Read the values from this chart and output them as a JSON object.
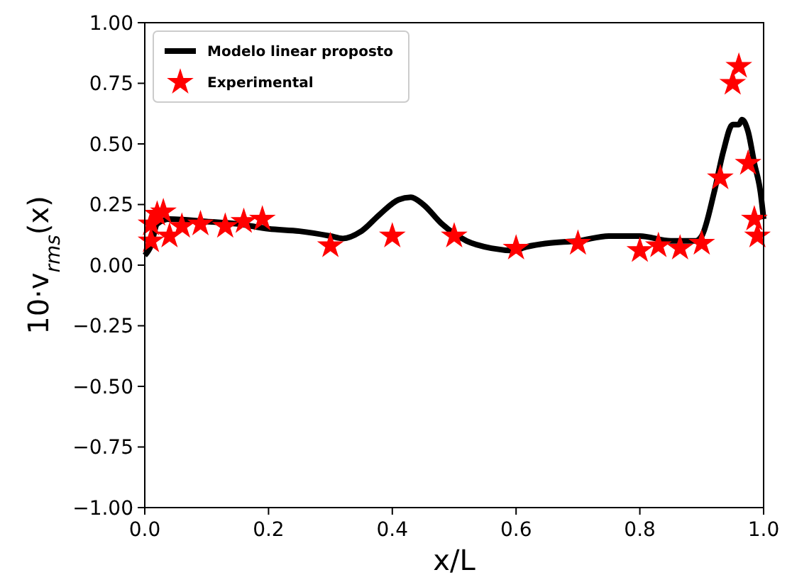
{
  "chart_data": {
    "type": "line",
    "xlabel": "x/L",
    "ylabel": "10·v$_{rms}$(x)",
    "xlim": [
      0,
      1
    ],
    "ylim": [
      -1,
      1
    ],
    "xticks": [
      {
        "value": 0,
        "label": "0.0"
      },
      {
        "value": 0.2,
        "label": "0.2"
      },
      {
        "value": 0.4,
        "label": "0.4"
      },
      {
        "value": 0.6,
        "label": "0.6"
      },
      {
        "value": 0.8,
        "label": "0.8"
      },
      {
        "value": 1,
        "label": "1.0"
      }
    ],
    "yticks": [
      {
        "value": -1,
        "label": "−1.00"
      },
      {
        "value": -0.75,
        "label": "−0.75"
      },
      {
        "value": -0.5,
        "label": "−0.50"
      },
      {
        "value": -0.25,
        "label": "−0.25"
      },
      {
        "value": 0,
        "label": "0.00"
      },
      {
        "value": 0.25,
        "label": "0.25"
      },
      {
        "value": 0.5,
        "label": "0.50"
      },
      {
        "value": 0.75,
        "label": "0.75"
      },
      {
        "value": 1,
        "label": "1.00"
      }
    ],
    "legend": "top left",
    "grid": false,
    "series": [
      {
        "name": "Modelo linear proposto",
        "color": "#000000",
        "marker": "none",
        "line_style": "solid",
        "x": [
          0,
          0.01,
          0.02,
          0.04,
          0.1,
          0.15,
          0.2,
          0.25,
          0.3,
          0.32,
          0.35,
          0.38,
          0.41,
          0.43,
          0.45,
          0.48,
          0.52,
          0.56,
          0.6,
          0.61,
          0.65,
          0.7,
          0.75,
          0.8,
          0.85,
          0.89,
          0.9,
          0.92,
          0.935,
          0.95,
          0.96,
          0.965,
          0.975,
          0.985,
          0.995,
          1.0
        ],
        "values": [
          0.04,
          0.08,
          0.17,
          0.19,
          0.18,
          0.17,
          0.15,
          0.14,
          0.12,
          0.11,
          0.14,
          0.21,
          0.27,
          0.28,
          0.25,
          0.17,
          0.1,
          0.07,
          0.06,
          0.07,
          0.09,
          0.1,
          0.12,
          0.12,
          0.1,
          0.1,
          0.12,
          0.3,
          0.47,
          0.58,
          0.58,
          0.6,
          0.55,
          0.42,
          0.3,
          0.19
        ]
      },
      {
        "name": "Experimental",
        "type": "scatter",
        "color": "#ff0000",
        "marker": "star",
        "x": [
          0.01,
          0.01,
          0.02,
          0.03,
          0.04,
          0.06,
          0.09,
          0.13,
          0.16,
          0.19,
          0.3,
          0.4,
          0.5,
          0.6,
          0.7,
          0.8,
          0.83,
          0.865,
          0.9,
          0.93,
          0.95,
          0.96,
          0.975,
          0.985,
          0.99
        ],
        "values": [
          0.1,
          0.17,
          0.21,
          0.22,
          0.12,
          0.16,
          0.17,
          0.16,
          0.18,
          0.19,
          0.08,
          0.12,
          0.12,
          0.07,
          0.09,
          0.06,
          0.08,
          0.07,
          0.09,
          0.36,
          0.75,
          0.82,
          0.42,
          0.19,
          0.12
        ]
      }
    ]
  }
}
